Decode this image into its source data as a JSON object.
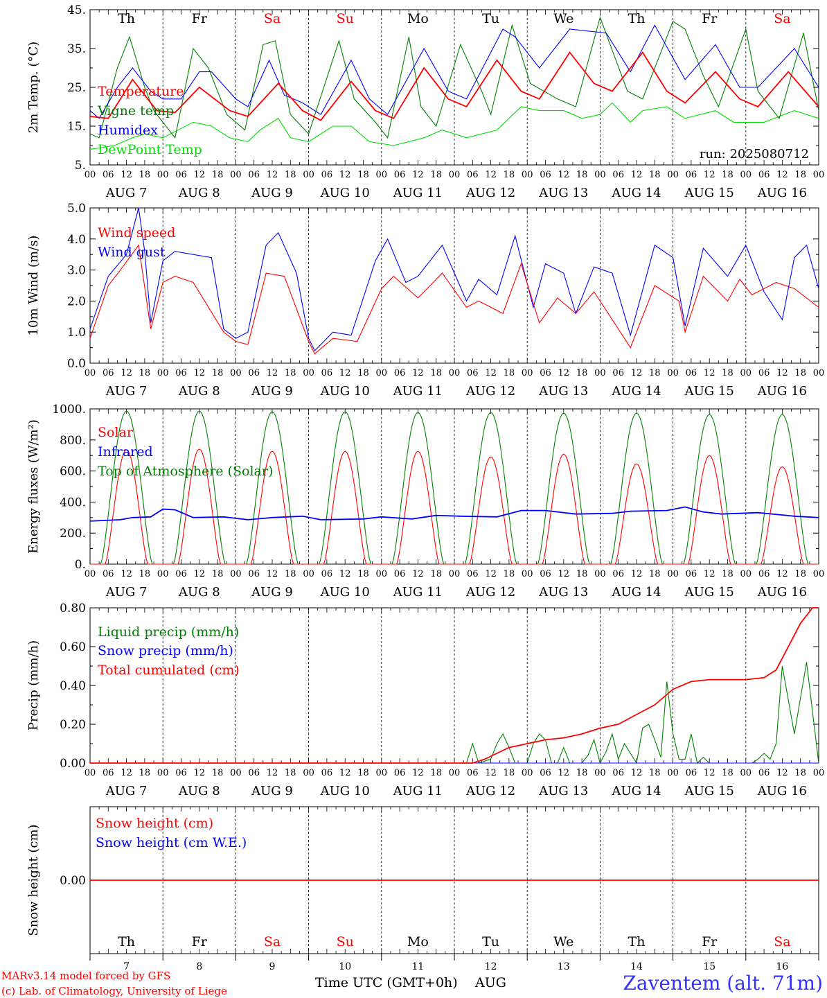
{
  "days": [
    "Th",
    "Fr",
    "Sa",
    "Su",
    "Mo",
    "Tu",
    "We",
    "Th",
    "Fr",
    "Sa"
  ],
  "weekend": [
    false,
    false,
    true,
    true,
    false,
    false,
    false,
    false,
    false,
    true
  ],
  "dates": [
    "AUG  7",
    "AUG  8",
    "AUG  9",
    "AUG 10",
    "AUG 11",
    "AUG 12",
    "AUG 13",
    "AUG 14",
    "AUG 15",
    "AUG 16"
  ],
  "day_numbers": [
    "7",
    "8",
    "9",
    "10",
    "11",
    "12",
    "13",
    "14",
    "15",
    "16"
  ],
  "hour_labels": [
    "00",
    "06",
    "12",
    "18"
  ],
  "hour_end_label": "00",
  "run_label": "run: 2025080712",
  "footer": {
    "credit_line1": "MARv3.14 model forced by GFS",
    "credit_line2": "(c) Lab. of Climatology, University of Liege",
    "time_axis_label": "Time UTC (GMT+0h)",
    "month_label": "AUG",
    "station": "Zaventem (alt. 71m)"
  },
  "colors": {
    "red": "#ff0000",
    "green": "#008000",
    "blue": "#0000ff",
    "lightgreen": "#00dd00",
    "station": "#3333ff"
  },
  "chart_data": [
    {
      "type": "line",
      "ylabel": "2m Temp. (°C)",
      "ylim": [
        5,
        45
      ],
      "yticks": [
        "5.",
        "15.",
        "25.",
        "35.",
        "45."
      ],
      "x_unit": "hours since AUG 7 00 UTC",
      "series": [
        {
          "name": "Temperature",
          "color": "red",
          "x": [
            0,
            6,
            14,
            22,
            28,
            36,
            46,
            52,
            62,
            70,
            76,
            86,
            94,
            100,
            110,
            118,
            124,
            134,
            142,
            148,
            158,
            166,
            172,
            182,
            190,
            196,
            206,
            214,
            220,
            230,
            240
          ],
          "values": [
            17.5,
            17,
            27,
            19,
            18.5,
            25,
            19,
            17.5,
            26,
            19,
            16.5,
            26.5,
            19,
            17,
            30,
            22,
            20,
            32,
            24,
            22,
            34,
            26,
            24,
            34,
            24,
            21,
            29,
            22,
            20,
            29,
            20
          ]
        },
        {
          "name": "Vigne temp",
          "color": "green",
          "x": [
            0,
            3,
            9,
            13,
            18,
            21,
            28,
            34,
            39,
            45,
            51,
            57,
            61,
            66,
            72,
            82,
            87,
            94,
            98,
            105,
            109,
            114,
            122,
            129,
            132,
            139,
            145,
            154,
            160,
            168,
            177,
            182,
            192,
            196,
            202,
            207,
            216,
            220,
            227,
            235,
            240
          ],
          "values": [
            13,
            12,
            30,
            38,
            25,
            19,
            12,
            35,
            30,
            18,
            14,
            36,
            37,
            18,
            13,
            37,
            22,
            16,
            12,
            38,
            20,
            15,
            36,
            24,
            18,
            41,
            26,
            22,
            20,
            43,
            24,
            22,
            42,
            40,
            28,
            20,
            40,
            24,
            17,
            39,
            19
          ]
        },
        {
          "name": "Humidex",
          "color": "blue",
          "x": [
            0,
            3,
            9,
            14,
            20,
            24,
            30,
            36,
            40,
            48,
            52,
            59,
            64,
            70,
            76,
            86,
            92,
            98,
            110,
            118,
            124,
            136,
            140,
            148,
            158,
            170,
            178,
            186,
            196,
            206,
            214,
            220,
            232,
            240
          ],
          "values": [
            19,
            17,
            25,
            30,
            24,
            22,
            22,
            29,
            29,
            22,
            20,
            32,
            23,
            21,
            18,
            32,
            22,
            18,
            35,
            24,
            22,
            40,
            38,
            30,
            40,
            39,
            29,
            41,
            27,
            36,
            25,
            25,
            35,
            25
          ]
        },
        {
          "name": "DewPoint Temp",
          "color": "lightgreen",
          "x": [
            0,
            8,
            14,
            18,
            24,
            34,
            40,
            46,
            52,
            56,
            62,
            66,
            72,
            80,
            86,
            92,
            100,
            110,
            116,
            124,
            134,
            142,
            148,
            156,
            162,
            168,
            172,
            178,
            182,
            190,
            196,
            206,
            212,
            222,
            232,
            240
          ],
          "values": [
            9,
            10,
            12,
            13,
            12,
            16,
            15,
            12,
            11,
            14,
            17,
            12,
            11,
            15,
            15,
            11,
            10,
            12,
            14,
            12,
            14,
            20,
            19,
            19,
            17,
            18,
            21,
            16,
            19,
            20,
            17,
            19,
            16,
            16,
            19,
            17
          ]
        }
      ]
    },
    {
      "type": "line",
      "ylabel": "10m Wind (m/s)",
      "ylim": [
        0,
        5
      ],
      "yticks": [
        "0.0",
        "1.0",
        "2.0",
        "3.0",
        "4.0",
        "5.0"
      ],
      "x_unit": "hours since AUG 7 00 UTC",
      "series": [
        {
          "name": "Wind speed",
          "color": "red",
          "x": [
            0,
            6,
            10,
            16,
            20,
            24,
            28,
            34,
            44,
            48,
            52,
            58,
            64,
            72,
            74,
            80,
            88,
            96,
            100,
            108,
            116,
            124,
            128,
            136,
            142,
            148,
            154,
            160,
            166,
            170,
            178,
            186,
            194,
            196,
            202,
            210,
            214,
            218,
            226,
            232,
            240
          ],
          "values": [
            0.8,
            2.5,
            3,
            3.8,
            1.1,
            2.6,
            2.8,
            2.6,
            1.0,
            0.7,
            0.6,
            2.9,
            2.8,
            0.7,
            0.3,
            0.8,
            0.7,
            2.4,
            2.8,
            2.1,
            2.9,
            1.8,
            2,
            1.6,
            3.2,
            1.3,
            2.1,
            1.6,
            2.3,
            1.7,
            0.5,
            2.5,
            2.0,
            1.0,
            2.8,
            2.0,
            2.7,
            2.2,
            2.6,
            2.4,
            1.8
          ]
        },
        {
          "name": "Wind gust",
          "color": "blue",
          "x": [
            0,
            6,
            12,
            16,
            18,
            20,
            24,
            28,
            40,
            44,
            48,
            52,
            58,
            62,
            68,
            72,
            74,
            80,
            86,
            94,
            98,
            104,
            108,
            116,
            124,
            128,
            134,
            140,
            146,
            150,
            156,
            160,
            166,
            172,
            178,
            186,
            192,
            196,
            202,
            210,
            216,
            222,
            228,
            232,
            236,
            240
          ],
          "values": [
            1.1,
            2.8,
            3.5,
            5.0,
            3.6,
            1.3,
            3.3,
            3.6,
            3.4,
            1.1,
            0.8,
            1.0,
            3.8,
            4.2,
            2.9,
            0.8,
            0.4,
            1.0,
            0.9,
            3.3,
            4.0,
            2.6,
            2.8,
            3.8,
            2.0,
            2.7,
            2.2,
            4.1,
            1.8,
            3.2,
            2.9,
            1.6,
            3.1,
            2.9,
            0.9,
            3.8,
            3.4,
            1.2,
            3.7,
            2.8,
            3.8,
            2.3,
            1.4,
            3.4,
            3.8,
            2.4
          ]
        }
      ]
    },
    {
      "type": "line",
      "ylabel": "Energy fluxes (W/m²)",
      "ylim": [
        0,
        1100
      ],
      "yticks": [
        "0.",
        "200.",
        "400.",
        "600.",
        "800.",
        "1000."
      ],
      "x_unit": "hours since AUG 7 00 UTC",
      "series": [
        {
          "name": "Solar",
          "color": "red",
          "daily_peaks": [
            810,
            815,
            800,
            800,
            800,
            760,
            780,
            710,
            770,
            690
          ]
        },
        {
          "name": "Infrared",
          "color": "blue",
          "x": [
            0,
            10,
            14,
            20,
            24,
            28,
            34,
            44,
            52,
            60,
            70,
            76,
            90,
            96,
            106,
            114,
            122,
            134,
            142,
            150,
            160,
            172,
            178,
            190,
            196,
            202,
            208,
            220,
            232,
            240
          ],
          "values": [
            305,
            315,
            330,
            335,
            390,
            385,
            330,
            335,
            315,
            330,
            340,
            315,
            320,
            335,
            320,
            345,
            340,
            335,
            380,
            380,
            355,
            360,
            375,
            380,
            405,
            370,
            355,
            365,
            340,
            330
          ]
        },
        {
          "name": "Top of Atmosphere (Solar)",
          "color": "green",
          "daily_peaks": [
            1085,
            1085,
            1080,
            1080,
            1075,
            1075,
            1070,
            1070,
            1060,
            1060
          ]
        }
      ]
    },
    {
      "type": "line",
      "ylabel": "Precip (mm/h)",
      "ylim": [
        0,
        0.8
      ],
      "yticks": [
        "0.00",
        "0.20",
        "0.40",
        "0.60",
        "0.80"
      ],
      "x_unit": "hours since AUG 7 00 UTC",
      "series": [
        {
          "name": "Liquid precip (mm/h)",
          "color": "green",
          "x": [
            0,
            120,
            124,
            126,
            128,
            132,
            134,
            136,
            138,
            140,
            144,
            146,
            148,
            150,
            152,
            154,
            156,
            158,
            160,
            162,
            164,
            166,
            168,
            170,
            172,
            174,
            176,
            178,
            180,
            182,
            184,
            186,
            188,
            190,
            192,
            194,
            196,
            198,
            200,
            202,
            204,
            206,
            208,
            210,
            212,
            214,
            216,
            218,
            220,
            222,
            224,
            226,
            228,
            232,
            236,
            240
          ],
          "values": [
            0,
            0,
            0,
            0.1,
            0,
            0.02,
            0.1,
            0.15,
            0.08,
            0,
            0,
            0.1,
            0.15,
            0.12,
            0,
            0,
            0.08,
            0,
            0,
            0,
            0.04,
            0.12,
            0,
            0.06,
            0.15,
            0.02,
            0.1,
            0.05,
            0,
            0.18,
            0.2,
            0.12,
            0.03,
            0.42,
            0.15,
            0.02,
            0.02,
            0.15,
            0,
            0.03,
            0,
            0,
            0,
            0,
            0,
            0,
            0,
            0,
            0.02,
            0.05,
            0.02,
            0.1,
            0.5,
            0.15,
            0.52,
            0
          ]
        },
        {
          "name": "Snow precip (mm/h)",
          "color": "blue",
          "x": [
            0,
            240
          ],
          "values": [
            0,
            0
          ]
        },
        {
          "name": "Total cumulated (cm)",
          "color": "red",
          "x": [
            0,
            126,
            130,
            134,
            138,
            144,
            150,
            156,
            162,
            168,
            174,
            180,
            186,
            192,
            198,
            204,
            210,
            216,
            222,
            226,
            230,
            234,
            238,
            240
          ],
          "values": [
            0,
            0,
            0.02,
            0.05,
            0.08,
            0.1,
            0.12,
            0.13,
            0.15,
            0.18,
            0.2,
            0.25,
            0.3,
            0.38,
            0.42,
            0.43,
            0.43,
            0.43,
            0.44,
            0.48,
            0.6,
            0.72,
            0.8,
            0.8
          ]
        }
      ]
    },
    {
      "type": "line",
      "ylabel": "Snow height (cm)",
      "yticks": [
        "0.00"
      ],
      "x_unit": "hours since AUG 7 00 UTC",
      "series": [
        {
          "name": "Snow height (cm)",
          "color": "red",
          "x": [
            0,
            240
          ],
          "values": [
            0,
            0
          ]
        },
        {
          "name": "Snow height (cm W.E.)",
          "color": "blue",
          "x": [
            0,
            240
          ],
          "values": [
            0,
            0
          ]
        }
      ]
    }
  ]
}
